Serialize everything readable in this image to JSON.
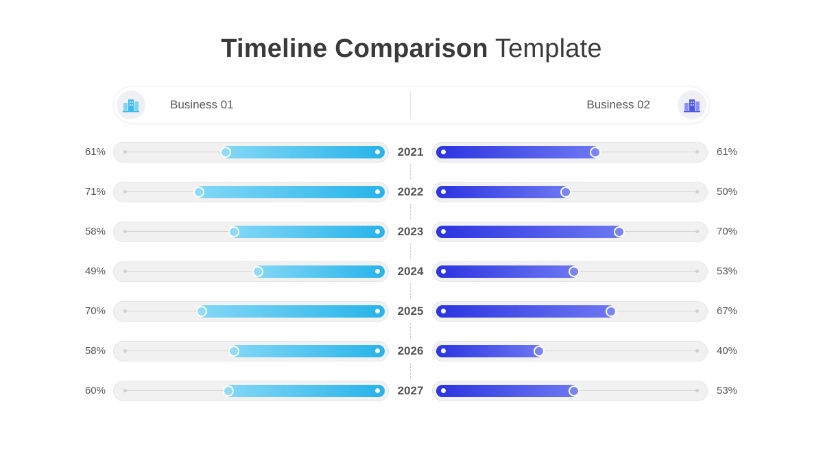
{
  "title": {
    "bold": "Timeline Comparison",
    "light": "Template"
  },
  "header": {
    "left_label": "Business 01",
    "right_label": "Business 02",
    "left_icon": "buildings-icon",
    "right_icon": "buildings-icon"
  },
  "colors": {
    "business01": "#27b3ea",
    "business02": "#2b34e0"
  },
  "chart_data": {
    "type": "bar",
    "categories": [
      "2021",
      "2022",
      "2023",
      "2024",
      "2025",
      "2026",
      "2027"
    ],
    "series": [
      {
        "name": "Business 01",
        "values": [
          61,
          71,
          58,
          49,
          70,
          58,
          60
        ],
        "labels": [
          "61%",
          "71%",
          "58%",
          "49%",
          "70%",
          "58%",
          "60%"
        ]
      },
      {
        "name": "Business 02",
        "values": [
          61,
          50,
          70,
          53,
          67,
          40,
          53
        ],
        "labels": [
          "61%",
          "50%",
          "70%",
          "53%",
          "67%",
          "40%",
          "53%"
        ]
      }
    ],
    "ylim": [
      0,
      100
    ],
    "orientation": "horizontal-mirrored"
  }
}
